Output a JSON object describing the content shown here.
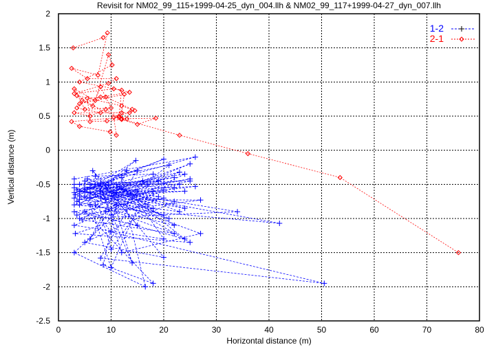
{
  "chart_data": {
    "type": "line",
    "title": "Revisit for NM02_99_115+1999-04-25_dyn_004.llh & NM02_99_117+1999-04-27_dyn_007.llh",
    "xlabel": "Horizontal distance (m)",
    "ylabel": "Vertical distance (m)",
    "xlim": [
      0,
      80
    ],
    "ylim": [
      -2.5,
      2
    ],
    "xticks": [
      0,
      10,
      20,
      30,
      40,
      50,
      60,
      70,
      80
    ],
    "yticks": [
      -2.5,
      -2,
      -1.5,
      -1,
      -0.5,
      0,
      0.5,
      1,
      1.5,
      2
    ],
    "ytick_labels": [
      "-2.5",
      "-2",
      "-1.5",
      "-1",
      "-0.5",
      "0",
      "0.5",
      "1",
      "1.5",
      "2"
    ],
    "grid": true,
    "legend_position": "top-right",
    "series": [
      {
        "name": "1-2",
        "color": "#0000ff",
        "marker": "plus",
        "points": [
          [
            3,
            -0.42
          ],
          [
            26,
            -0.1
          ],
          [
            5,
            -0.55
          ],
          [
            22,
            -0.4
          ],
          [
            3.2,
            -0.65
          ],
          [
            20,
            -0.13
          ],
          [
            8,
            -0.48
          ],
          [
            25,
            -0.45
          ],
          [
            4,
            -0.8
          ],
          [
            14.7,
            -0.15
          ],
          [
            3,
            -0.7
          ],
          [
            24,
            -0.6
          ],
          [
            6,
            -0.62
          ],
          [
            23,
            -0.32
          ],
          [
            3.5,
            -0.95
          ],
          [
            27,
            -0.73
          ],
          [
            9,
            -0.72
          ],
          [
            20,
            -0.58
          ],
          [
            3,
            -1.1
          ],
          [
            20,
            -1.3
          ],
          [
            12,
            -0.4
          ],
          [
            4,
            -0.6
          ],
          [
            18,
            -0.85
          ],
          [
            3.2,
            -1.22
          ],
          [
            25,
            -1.35
          ],
          [
            6,
            -0.5
          ],
          [
            15,
            -0.6
          ],
          [
            8,
            -1.58
          ],
          [
            50.5,
            -1.95
          ],
          [
            10,
            -1.2
          ],
          [
            5,
            -0.68
          ],
          [
            19,
            -0.45
          ],
          [
            3,
            -0.5
          ],
          [
            23,
            -0.5
          ],
          [
            7,
            -0.8
          ],
          [
            22,
            -1.22
          ],
          [
            4.5,
            -1.02
          ],
          [
            12,
            -0.55
          ],
          [
            16.5,
            -2.0
          ],
          [
            3,
            -1.5
          ],
          [
            14,
            -0.7
          ],
          [
            5,
            -0.45
          ],
          [
            21,
            -0.22
          ],
          [
            9,
            -0.9
          ],
          [
            24,
            -0.35
          ],
          [
            3.5,
            -0.58
          ],
          [
            17,
            -0.5
          ],
          [
            10,
            -1.72
          ],
          [
            6,
            -0.8
          ],
          [
            25,
            -0.2
          ],
          [
            3,
            -0.8
          ],
          [
            42,
            -1.07
          ],
          [
            8,
            -0.6
          ],
          [
            22,
            -0.75
          ],
          [
            5,
            -1.35
          ],
          [
            20,
            -1.57
          ],
          [
            6.5,
            -0.3
          ],
          [
            11,
            -0.65
          ],
          [
            4,
            -0.72
          ],
          [
            23,
            -0.9
          ],
          [
            9.5,
            -0.5
          ],
          [
            14,
            -1.65
          ],
          [
            7,
            -0.38
          ],
          [
            18,
            -0.35
          ],
          [
            3,
            -0.62
          ],
          [
            26,
            -0.53
          ],
          [
            8,
            -0.7
          ],
          [
            20,
            -0.95
          ],
          [
            4,
            -0.5
          ],
          [
            15,
            -0.3
          ],
          [
            6,
            -1.3
          ],
          [
            13,
            -0.3
          ],
          [
            3.5,
            -0.75
          ],
          [
            22,
            -1.1
          ],
          [
            10,
            -0.45
          ],
          [
            24,
            -1.3
          ],
          [
            5,
            -0.9
          ],
          [
            18,
            -1.95
          ],
          [
            8.5,
            -1.68
          ],
          [
            11,
            -0.8
          ],
          [
            3,
            -0.55
          ],
          [
            19,
            -0.68
          ],
          [
            7,
            -0.5
          ],
          [
            21,
            -1.0
          ],
          [
            4,
            -0.67
          ],
          [
            25,
            -0.42
          ],
          [
            6,
            -0.7
          ],
          [
            16,
            -0.45
          ],
          [
            10,
            -0.95
          ],
          [
            20,
            -0.7
          ],
          [
            3,
            -0.9
          ],
          [
            15,
            -1.1
          ],
          [
            9,
            -0.55
          ],
          [
            24,
            -0.85
          ],
          [
            5,
            -0.6
          ],
          [
            27,
            -1.22
          ],
          [
            12,
            -1.5
          ],
          [
            8,
            -0.5
          ],
          [
            22,
            -0.55
          ],
          [
            4,
            -1.0
          ],
          [
            34,
            -0.9
          ],
          [
            6,
            -0.55
          ],
          [
            18,
            -0.6
          ],
          [
            10,
            -1.45
          ],
          [
            7,
            -0.65
          ],
          [
            13,
            -0.6
          ],
          [
            5.5,
            -0.42
          ],
          [
            17,
            -0.8
          ],
          [
            11,
            -0.5
          ],
          [
            20,
            -0.48
          ]
        ]
      },
      {
        "name": "2-1",
        "color": "#ff0000",
        "marker": "diamond",
        "points": [
          [
            2.8,
            1.5
          ],
          [
            8.5,
            1.65
          ],
          [
            9.3,
            1.72
          ],
          [
            7.5,
            1.1
          ],
          [
            2.5,
            1.2
          ],
          [
            5.5,
            1.05
          ],
          [
            11,
            1.05
          ],
          [
            9.5,
            0.98
          ],
          [
            3,
            0.83
          ],
          [
            10.5,
            0.9
          ],
          [
            13.5,
            0.85
          ],
          [
            8,
            0.78
          ],
          [
            4,
            0.68
          ],
          [
            12.5,
            0.82
          ],
          [
            12,
            0.55
          ],
          [
            3,
            0.55
          ],
          [
            6,
            0.5
          ],
          [
            9,
            0.6
          ],
          [
            11.5,
            0.48
          ],
          [
            2.5,
            0.42
          ],
          [
            4,
            0.35
          ],
          [
            9.8,
            0.27
          ],
          [
            11,
            0.22
          ],
          [
            10.5,
            0.48
          ],
          [
            14.5,
            0.58
          ],
          [
            12,
            0.65
          ],
          [
            3.5,
            0.8
          ],
          [
            6.5,
            0.65
          ],
          [
            8,
            0.93
          ],
          [
            10,
            0.62
          ],
          [
            5,
            0.6
          ],
          [
            3,
            0.9
          ],
          [
            7,
            0.73
          ],
          [
            9.5,
            1.4
          ],
          [
            10.2,
            1.25
          ],
          [
            4,
            1.0
          ],
          [
            12,
            0.88
          ],
          [
            11.5,
            0.5
          ],
          [
            13,
            0.46
          ],
          [
            9.2,
            0.43
          ],
          [
            6,
            0.42
          ],
          [
            5.5,
            0.76
          ],
          [
            9,
            0.78
          ],
          [
            14,
            0.6
          ],
          [
            13.5,
            0.55
          ],
          [
            8,
            0.55
          ],
          [
            3.5,
            0.62
          ],
          [
            4.5,
            0.73
          ],
          [
            12,
            0.45
          ],
          [
            15,
            0.38
          ],
          [
            18.5,
            0.47
          ],
          [
            12,
            0.46
          ],
          [
            23,
            0.22
          ],
          [
            36,
            -0.05
          ],
          [
            53.5,
            -0.4
          ],
          [
            76,
            -1.5
          ]
        ]
      }
    ]
  }
}
